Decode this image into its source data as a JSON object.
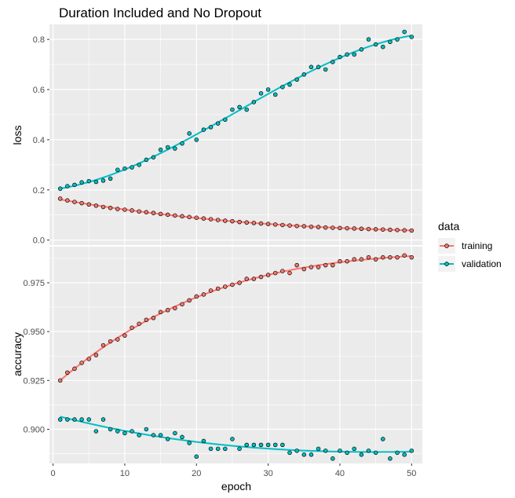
{
  "chart_data": {
    "type": "scatter",
    "title": "Duration Included and No Dropout",
    "xlabel": "epoch",
    "xlim": [
      -0.5,
      51.5
    ],
    "xticks": [
      0,
      10,
      20,
      30,
      40,
      50
    ],
    "x_tick_labels": [
      "0",
      "10",
      "20",
      "30",
      "40",
      "50"
    ],
    "legend": {
      "title": "data",
      "position": "right",
      "entries": [
        {
          "name": "training",
          "color": "#F8766D"
        },
        {
          "name": "validation",
          "color": "#00BFC4"
        }
      ]
    },
    "grid": true,
    "background": "#EBEBEB",
    "smooth_lines": true,
    "facets": [
      {
        "ylabel": "loss",
        "ylim": [
          -0.02,
          0.86
        ],
        "yticks": [
          0.0,
          0.2,
          0.4,
          0.6,
          0.8
        ],
        "y_tick_labels": [
          "0.0",
          "0.2",
          "0.4",
          "0.6",
          "0.8"
        ],
        "series": [
          {
            "name": "training",
            "x": [
              1,
              2,
              3,
              4,
              5,
              6,
              7,
              8,
              9,
              10,
              11,
              12,
              13,
              14,
              15,
              16,
              17,
              18,
              19,
              20,
              21,
              22,
              23,
              24,
              25,
              26,
              27,
              28,
              29,
              30,
              31,
              32,
              33,
              34,
              35,
              36,
              37,
              38,
              39,
              40,
              41,
              42,
              43,
              44,
              45,
              46,
              47,
              48,
              49,
              50
            ],
            "y": [
              0.165,
              0.158,
              0.152,
              0.147,
              0.142,
              0.137,
              0.132,
              0.128,
              0.124,
              0.121,
              0.118,
              0.114,
              0.111,
              0.108,
              0.104,
              0.101,
              0.098,
              0.095,
              0.092,
              0.089,
              0.086,
              0.083,
              0.08,
              0.077,
              0.075,
              0.072,
              0.07,
              0.068,
              0.066,
              0.064,
              0.062,
              0.06,
              0.058,
              0.056,
              0.055,
              0.053,
              0.052,
              0.05,
              0.049,
              0.048,
              0.047,
              0.046,
              0.045,
              0.044,
              0.043,
              0.042,
              0.041,
              0.04,
              0.039,
              0.038
            ]
          },
          {
            "name": "validation",
            "x": [
              1,
              2,
              3,
              4,
              5,
              6,
              7,
              8,
              9,
              10,
              11,
              12,
              13,
              14,
              15,
              16,
              17,
              18,
              19,
              20,
              21,
              22,
              23,
              24,
              25,
              26,
              27,
              28,
              29,
              30,
              31,
              32,
              33,
              34,
              35,
              36,
              37,
              38,
              39,
              40,
              41,
              42,
              43,
              44,
              45,
              46,
              47,
              48,
              49,
              50
            ],
            "y": [
              0.205,
              0.215,
              0.22,
              0.23,
              0.235,
              0.232,
              0.237,
              0.245,
              0.28,
              0.285,
              0.29,
              0.3,
              0.32,
              0.33,
              0.36,
              0.37,
              0.365,
              0.385,
              0.425,
              0.4,
              0.44,
              0.45,
              0.465,
              0.48,
              0.52,
              0.53,
              0.52,
              0.55,
              0.585,
              0.6,
              0.58,
              0.61,
              0.62,
              0.64,
              0.66,
              0.69,
              0.69,
              0.68,
              0.71,
              0.73,
              0.74,
              0.74,
              0.76,
              0.8,
              0.78,
              0.77,
              0.79,
              0.8,
              0.83,
              0.81
            ]
          }
        ]
      },
      {
        "ylabel": "accuracy",
        "ylim": [
          0.8825,
          0.9935
        ],
        "yticks": [
          0.9,
          0.925,
          0.95,
          0.975
        ],
        "y_tick_labels": [
          "0.900",
          "0.925",
          "0.950",
          "0.975"
        ],
        "series": [
          {
            "name": "training",
            "x": [
              1,
              2,
              3,
              4,
              5,
              6,
              7,
              8,
              9,
              10,
              11,
              12,
              13,
              14,
              15,
              16,
              17,
              18,
              19,
              20,
              21,
              22,
              23,
              24,
              25,
              26,
              27,
              28,
              29,
              30,
              31,
              32,
              33,
              34,
              35,
              36,
              37,
              38,
              39,
              40,
              41,
              42,
              43,
              44,
              45,
              46,
              47,
              48,
              49,
              50
            ],
            "y": [
              0.925,
              0.929,
              0.931,
              0.934,
              0.936,
              0.938,
              0.943,
              0.945,
              0.946,
              0.948,
              0.952,
              0.954,
              0.956,
              0.957,
              0.96,
              0.961,
              0.962,
              0.964,
              0.966,
              0.968,
              0.969,
              0.971,
              0.972,
              0.973,
              0.974,
              0.975,
              0.977,
              0.977,
              0.978,
              0.979,
              0.98,
              0.981,
              0.98,
              0.984,
              0.982,
              0.983,
              0.983,
              0.984,
              0.984,
              0.986,
              0.986,
              0.987,
              0.987,
              0.988,
              0.987,
              0.988,
              0.988,
              0.988,
              0.989,
              0.988
            ]
          },
          {
            "name": "validation",
            "x": [
              1,
              2,
              3,
              4,
              5,
              6,
              7,
              8,
              9,
              10,
              11,
              12,
              13,
              14,
              15,
              16,
              17,
              18,
              19,
              20,
              21,
              22,
              23,
              24,
              25,
              26,
              27,
              28,
              29,
              30,
              31,
              32,
              33,
              34,
              35,
              36,
              37,
              38,
              39,
              40,
              41,
              42,
              43,
              44,
              45,
              46,
              47,
              48,
              49,
              50
            ],
            "y": [
              0.905,
              0.905,
              0.905,
              0.905,
              0.905,
              0.899,
              0.905,
              0.9,
              0.899,
              0.898,
              0.899,
              0.897,
              0.9,
              0.897,
              0.897,
              0.895,
              0.898,
              0.896,
              0.893,
              0.886,
              0.894,
              0.89,
              0.89,
              0.89,
              0.895,
              0.89,
              0.892,
              0.892,
              0.892,
              0.892,
              0.892,
              0.892,
              0.888,
              0.889,
              0.887,
              0.887,
              0.89,
              0.889,
              0.885,
              0.889,
              0.888,
              0.89,
              0.887,
              0.889,
              0.888,
              0.895,
              0.885,
              0.888,
              0.887,
              0.889
            ]
          }
        ]
      }
    ]
  }
}
